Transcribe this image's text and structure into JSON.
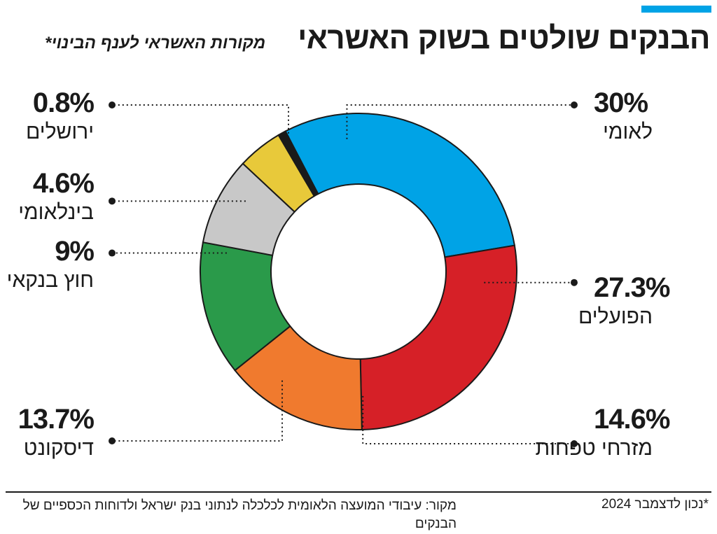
{
  "header": {
    "title": "הבנקים שולטים בשוק האשראי",
    "subtitle": "מקורות האשראי לענף הבינוי*",
    "accent_color": "#00a3e6"
  },
  "chart_data": {
    "type": "pie",
    "donut": true,
    "categories": [
      "לאומי",
      "הפועלים",
      "מזרחי טפחות",
      "דיסקונט",
      "חוץ בנקאי",
      "בינלאומי",
      "ירושלים"
    ],
    "values": [
      30,
      27.3,
      14.6,
      13.7,
      9,
      4.6,
      0.8
    ],
    "value_labels": [
      "30%",
      "27.3%",
      "14.6%",
      "13.7%",
      "9%",
      "4.6%",
      "0.8%"
    ],
    "colors": [
      "#00a3e6",
      "#d62027",
      "#f07a2e",
      "#2a9a4a",
      "#c8c8c8",
      "#e8c93a",
      "#1a1a1a"
    ],
    "legend": "labels beside chart with dotted leader lines"
  },
  "footer": {
    "source": "מקור: עיבודי המועצה הלאומית לכלכלה לנתוני בנק ישראל ולדוחות הכספיים של הבנקים",
    "note": "*נכון לדצמבר 2024"
  }
}
